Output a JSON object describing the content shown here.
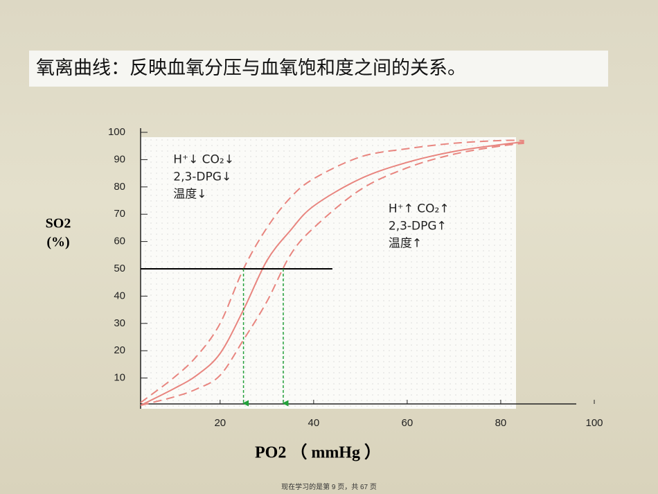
{
  "chart_data": {
    "type": "line",
    "title": "氧离曲线：反映血氧分压与血氧饱和度之间的关系。",
    "x_label": "PO2 （ mmHg ）",
    "y_label": [
      "SO2",
      "(%)"
    ],
    "footer": "现在学习的是第 9 页，共 67 页",
    "x": [
      3,
      10,
      15,
      20,
      25,
      30,
      35,
      40,
      50,
      60,
      70,
      80,
      85
    ],
    "series": [
      {
        "color": "#e8857f",
        "dash": false,
        "values": [
          0,
          6,
          11,
          19,
          35,
          53,
          64,
          73,
          83,
          89,
          93,
          95.5,
          96.5
        ]
      },
      {
        "color": "#e8857f",
        "dash": true,
        "values": [
          1,
          10,
          18,
          30,
          50,
          65,
          76,
          83,
          91,
          94,
          96,
          97,
          97
        ]
      },
      {
        "color": "#e8857f",
        "dash": true,
        "values": [
          0,
          3,
          6,
          11,
          24,
          38,
          55,
          65,
          79,
          87,
          92,
          95,
          96
        ]
      }
    ],
    "hline": {
      "y": 50,
      "xlim": [
        3,
        44
      ],
      "color": "#000000"
    },
    "vlines": [
      25,
      33.5
    ],
    "vline_color": "#22a03a",
    "annotations": [
      {
        "lines": [
          "H⁺↓ CO₂↓",
          "2,3-DPG↓",
          "温度↓"
        ],
        "x": 10,
        "y": 90
      },
      {
        "lines": [
          "H⁺↑ CO₂↑",
          "2,3-DPG↑",
          "温度↑"
        ],
        "x": 56,
        "y": 72
      }
    ],
    "xlim": [
      3,
      100
    ],
    "ylim": [
      0,
      100
    ],
    "xticks": [
      20,
      40,
      60,
      80,
      100
    ],
    "yticks": [
      10,
      20,
      30,
      40,
      50,
      60,
      70,
      80,
      90,
      100
    ]
  }
}
